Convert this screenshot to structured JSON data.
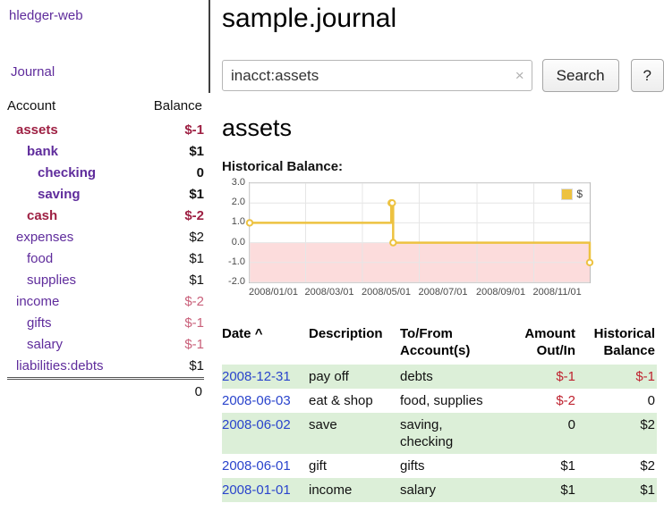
{
  "colors": {
    "link_purple": "#5f2c9c",
    "link_blue": "#2a44cc",
    "negative_strong": "#9e2043",
    "negative_light": "#c9607a",
    "negative_table": "#bf2330",
    "stripe_green": "#dcefd8",
    "chart_line": "#edc240",
    "chart_negative_bg": "#fcdcdc"
  },
  "sidebar": {
    "app_title": "hledger-web",
    "journal_link": "Journal",
    "accounts": {
      "headers": {
        "account": "Account",
        "balance": "Balance"
      },
      "rows": [
        {
          "account": "assets",
          "balance": "$-1",
          "indent": 0,
          "bold": true,
          "negative": true,
          "name_negative": true
        },
        {
          "account": "bank",
          "balance": "$1",
          "indent": 1,
          "bold": true
        },
        {
          "account": "checking",
          "balance": "0",
          "indent": 2,
          "bold": true
        },
        {
          "account": "saving",
          "balance": "$1",
          "indent": 2,
          "bold": true
        },
        {
          "account": "cash",
          "balance": "$-2",
          "indent": 1,
          "bold": true,
          "negative": true,
          "name_negative": true
        },
        {
          "account": "expenses",
          "balance": "$2",
          "indent": 0
        },
        {
          "account": "food",
          "balance": "$1",
          "indent": 1
        },
        {
          "account": "supplies",
          "balance": "$1",
          "indent": 1
        },
        {
          "account": "income",
          "balance": "$-2",
          "indent": 0,
          "negative": true
        },
        {
          "account": "gifts",
          "balance": "$-1",
          "indent": 1,
          "negative": true
        },
        {
          "account": "salary",
          "balance": "$-1",
          "indent": 1,
          "negative": true
        },
        {
          "account": "liabilities:debts",
          "balance": "$1",
          "indent": 0
        }
      ],
      "total": "0"
    }
  },
  "main": {
    "title": "sample.journal",
    "search": {
      "value": "inacct:assets",
      "clear_icon": "×",
      "search_button": "Search",
      "help_button": "?"
    },
    "account_heading": "assets",
    "chart_heading": "Historical Balance:"
  },
  "chart_data": {
    "type": "line",
    "step": true,
    "title": "Historical Balance",
    "x_range": [
      "2008-01-01",
      "2008-12-31"
    ],
    "ylim": [
      -2.0,
      3.0
    ],
    "yticks": [
      3.0,
      2.0,
      1.0,
      0.0,
      -1.0,
      -2.0
    ],
    "xticks": [
      {
        "date": "2008-01-01",
        "label": "2008/01/01"
      },
      {
        "date": "2008-03-01",
        "label": "2008/03/01"
      },
      {
        "date": "2008-05-01",
        "label": "2008/05/01"
      },
      {
        "date": "2008-07-01",
        "label": "2008/07/01"
      },
      {
        "date": "2008-09-01",
        "label": "2008/09/01"
      },
      {
        "date": "2008-11-01",
        "label": "2008/11/01"
      }
    ],
    "series": [
      {
        "name": "$",
        "points": [
          [
            "2008-01-01",
            1
          ],
          [
            "2008-06-01",
            2
          ],
          [
            "2008-06-02",
            2
          ],
          [
            "2008-06-03",
            0
          ],
          [
            "2008-12-31",
            -1
          ]
        ]
      }
    ],
    "legend": {
      "label": "$",
      "position": "top-right"
    },
    "negative_region": true,
    "grid": true
  },
  "register": {
    "headers": {
      "date": "Date",
      "sort_indicator": "^",
      "description": "Description",
      "accounts": "To/From\nAccount(s)",
      "amount": "Amount\nOut/In",
      "balance": "Historical\nBalance"
    },
    "rows": [
      {
        "date": "2008-12-31",
        "description": "pay off",
        "accounts": "debts",
        "amount": "$-1",
        "balance": "$-1",
        "amount_negative": true,
        "balance_negative": true
      },
      {
        "date": "2008-06-03",
        "description": "eat & shop",
        "accounts": "food, supplies",
        "amount": "$-2",
        "balance": "0",
        "amount_negative": true,
        "balance_negative": false
      },
      {
        "date": "2008-06-02",
        "description": "save",
        "accounts": "saving,\nchecking",
        "amount": "0",
        "balance": "$2",
        "amount_negative": false,
        "balance_negative": false
      },
      {
        "date": "2008-06-01",
        "description": "gift",
        "accounts": "gifts",
        "amount": "$1",
        "balance": "$2",
        "amount_negative": false,
        "balance_negative": false
      },
      {
        "date": "2008-01-01",
        "description": "income",
        "accounts": "salary",
        "amount": "$1",
        "balance": "$1",
        "amount_negative": false,
        "balance_negative": false
      }
    ]
  }
}
